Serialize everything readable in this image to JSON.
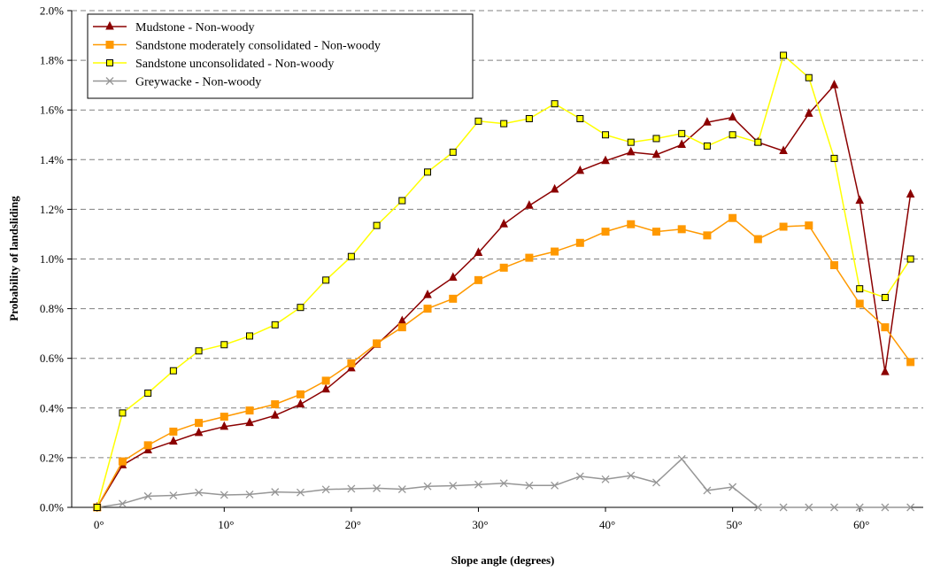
{
  "chart_data": {
    "type": "line",
    "xlabel": "Slope angle (degrees)",
    "ylabel": "Probability of landsliding",
    "xlim": [
      -2,
      65
    ],
    "ylim": [
      0,
      2.0
    ],
    "x_ticks": [
      0,
      10,
      20,
      30,
      40,
      50,
      60
    ],
    "x_tick_labels": [
      "0°",
      "10°",
      "20°",
      "30°",
      "40°",
      "50°",
      "60°"
    ],
    "y_ticks": [
      0,
      0.2,
      0.4,
      0.6,
      0.8,
      1.0,
      1.2,
      1.4,
      1.6,
      1.8,
      2.0
    ],
    "y_tick_labels": [
      "0.0%",
      "0.2%",
      "0.4%",
      "0.6%",
      "0.8%",
      "1.0%",
      "1.2%",
      "1.4%",
      "1.6%",
      "1.8%",
      "2.0%"
    ],
    "grid": "horizontal dashed",
    "legend_position": "top-left",
    "x": [
      0,
      2,
      4,
      6,
      8,
      10,
      12,
      14,
      16,
      18,
      20,
      22,
      24,
      26,
      28,
      30,
      32,
      34,
      36,
      38,
      40,
      42,
      44,
      46,
      48,
      50,
      52,
      54,
      56,
      58,
      60,
      62,
      64
    ],
    "series": [
      {
        "name": "Mudstone - Non-woody",
        "color": "#8B0000",
        "marker": "triangle",
        "values": [
          0.0,
          0.17,
          0.23,
          0.265,
          0.3,
          0.325,
          0.34,
          0.37,
          0.415,
          0.475,
          0.56,
          0.655,
          0.75,
          0.855,
          0.925,
          1.025,
          1.14,
          1.215,
          1.28,
          1.355,
          1.395,
          1.43,
          1.42,
          1.46,
          1.55,
          1.57,
          1.47,
          1.435,
          1.585,
          1.7,
          1.235,
          0.545,
          1.26
        ]
      },
      {
        "name": "Sandstone moderately consolidated - Non-woody",
        "color": "#FF9900",
        "marker": "square",
        "values": [
          0.0,
          0.185,
          0.25,
          0.305,
          0.34,
          0.365,
          0.39,
          0.415,
          0.455,
          0.51,
          0.58,
          0.66,
          0.725,
          0.8,
          0.84,
          0.915,
          0.965,
          1.005,
          1.03,
          1.065,
          1.11,
          1.14,
          1.11,
          1.12,
          1.095,
          1.165,
          1.08,
          1.13,
          1.135,
          0.975,
          0.82,
          0.725,
          0.585
        ]
      },
      {
        "name": "Sandstone unconsolidated - Non-woody",
        "color": "#FFFF00",
        "marker": "square-open",
        "values": [
          0.0,
          0.38,
          0.46,
          0.55,
          0.63,
          0.655,
          0.69,
          0.735,
          0.805,
          0.915,
          1.01,
          1.135,
          1.235,
          1.35,
          1.43,
          1.555,
          1.545,
          1.565,
          1.625,
          1.565,
          1.5,
          1.47,
          1.485,
          1.505,
          1.455,
          1.5,
          1.47,
          1.82,
          1.73,
          1.405,
          0.88,
          0.845,
          1.0
        ]
      },
      {
        "name": "Greywacke - Non-woody",
        "color": "#969696",
        "marker": "x",
        "values": [
          0.0,
          0.015,
          0.045,
          0.048,
          0.06,
          0.05,
          0.052,
          0.062,
          0.06,
          0.072,
          0.075,
          0.077,
          0.073,
          0.085,
          0.087,
          0.092,
          0.097,
          0.088,
          0.088,
          0.125,
          0.113,
          0.128,
          0.1,
          0.195,
          0.068,
          0.082,
          0.0,
          0.0,
          0.0,
          0.0,
          0.0,
          0.0,
          0.0
        ]
      }
    ]
  }
}
